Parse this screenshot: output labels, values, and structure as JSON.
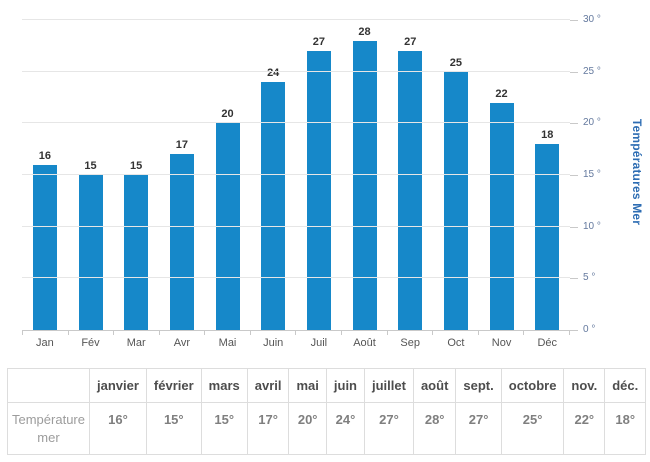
{
  "chart_data": {
    "type": "bar",
    "title": "",
    "categories": [
      "Jan",
      "Fév",
      "Mar",
      "Avr",
      "Mai",
      "Juin",
      "Juil",
      "Août",
      "Sep",
      "Oct",
      "Nov",
      "Déc"
    ],
    "values": [
      16,
      15,
      15,
      17,
      20,
      24,
      27,
      28,
      27,
      25,
      22,
      18
    ],
    "xlabel": "",
    "ylabel": "Températures Mer",
    "ylim": [
      0,
      30
    ],
    "ytick_step": 5,
    "ytick_labels": [
      "0 °",
      "5 °",
      "10 °",
      "15 °",
      "20 °",
      "25 °",
      "30 °"
    ],
    "grid": true,
    "legend": "none",
    "yaxis_position": "right"
  },
  "table": {
    "corner_label": "",
    "headers": [
      "janvier",
      "février",
      "mars",
      "avril",
      "mai",
      "juin",
      "juillet",
      "août",
      "sept.",
      "octobre",
      "nov.",
      "déc."
    ],
    "row_label": "Température mer",
    "values": [
      "16°",
      "15°",
      "15°",
      "17°",
      "20°",
      "24°",
      "27°",
      "28°",
      "27°",
      "25°",
      "22°",
      "18°"
    ]
  },
  "colors": {
    "bar": "#1688c9",
    "grid": "#e6e6e6",
    "axis": "#c9c9c9",
    "value": "#333333",
    "month": "#555555",
    "ytick": "#64799e",
    "ytitle": "#2e6db3",
    "tborder": "#dddddd",
    "thead": "#4d4d4d",
    "tval": "#7f7f7f",
    "tlabel": "#9c9c9c"
  }
}
